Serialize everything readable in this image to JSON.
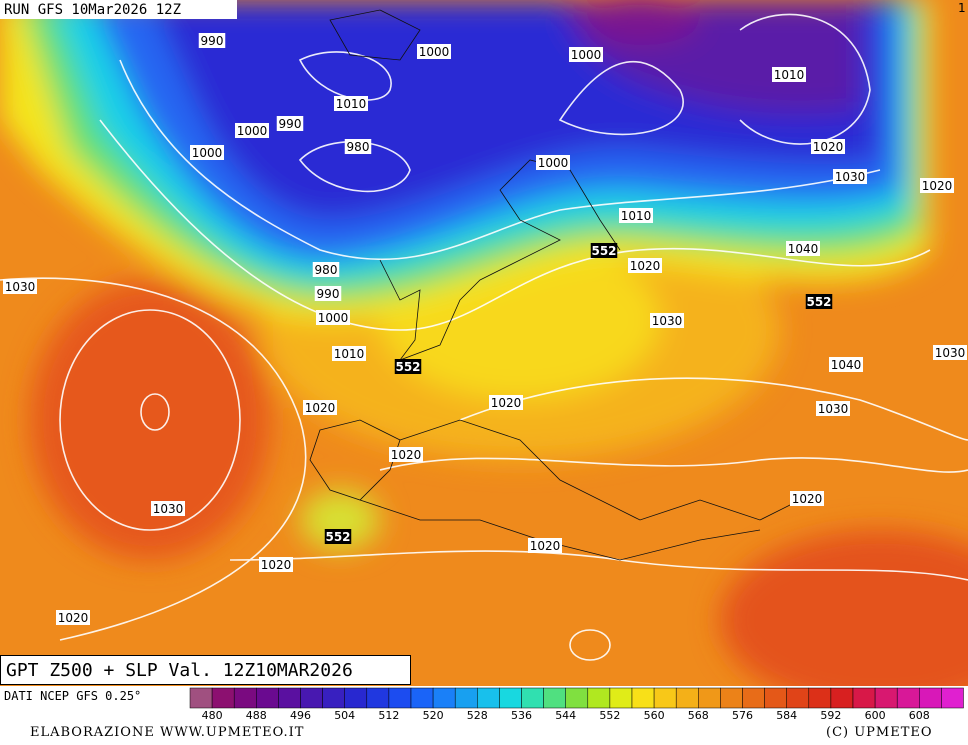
{
  "header": {
    "run": "RUN GFS 10Mar2026 12Z",
    "corner_mark": "1"
  },
  "map": {
    "title": "GPT Z500 + SLP Val. 12Z10MAR2026",
    "isobar_labels": [
      "990",
      "1000",
      "1000",
      "1010",
      "1010",
      "990",
      "1000",
      "980",
      "1000",
      "1020",
      "1000",
      "1030",
      "1020",
      "1010",
      "552",
      "1040",
      "1020",
      "980",
      "552",
      "990",
      "1030",
      "1000",
      "1030",
      "1010",
      "1030",
      "552",
      "1040",
      "1020",
      "1020",
      "1030",
      "1020",
      "1020",
      "1030",
      "552",
      "1020",
      "1020",
      "1020"
    ]
  },
  "colorbar": {
    "source": "DATI NCEP GFS 0.25°",
    "labels": [
      480,
      488,
      496,
      504,
      512,
      520,
      528,
      536,
      544,
      552,
      560,
      568,
      576,
      584,
      592,
      600,
      608
    ]
  },
  "footer": {
    "credit": "ELABORAZIONE WWW.UPMETEO.IT",
    "copyright": "(C)  UPMETEO"
  }
}
